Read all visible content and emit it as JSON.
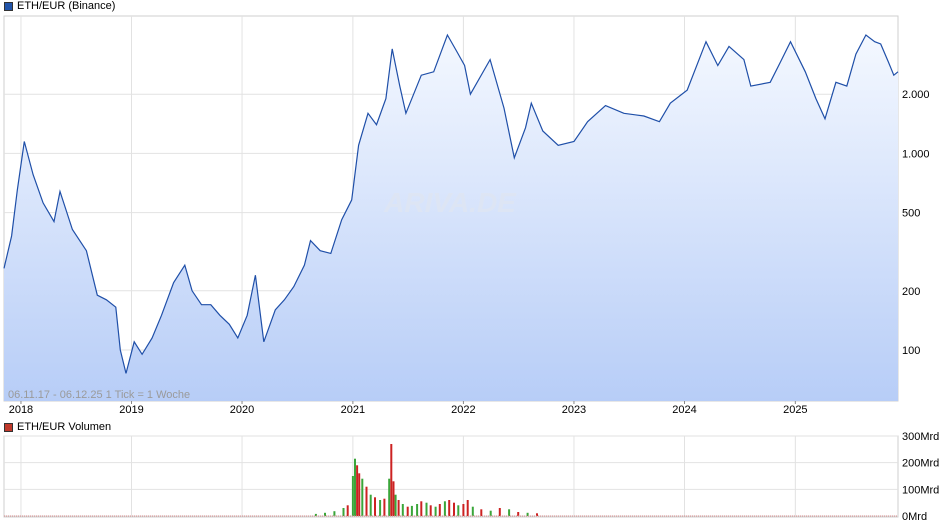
{
  "main_chart": {
    "legend_label": "ETH/EUR (Binance)",
    "legend_color": "#2255aa",
    "line_color": "#1f4fa8",
    "fill_top_color": "#f4f8ff",
    "fill_bottom_color": "#b7cdf7",
    "footnote": "06.11.17 - 06.12.25    1 Tick = 1 Woche",
    "watermark": "ARIVA.DE"
  },
  "volume_chart": {
    "legend_label": "ETH/EUR Volumen",
    "legend_color": "#c0392b",
    "up_color": "#3aa63a",
    "down_color": "#cc2222"
  },
  "chart_data": [
    {
      "type": "line",
      "title": "ETH/EUR (Binance)",
      "y_scale": "log",
      "ylim": [
        55,
        5000
      ],
      "y_ticks": [
        {
          "value": 100,
          "label": "100"
        },
        {
          "value": 200,
          "label": "200"
        },
        {
          "value": 500,
          "label": "500"
        },
        {
          "value": 1000,
          "label": "1.000"
        },
        {
          "value": 2000,
          "label": "2.000"
        }
      ],
      "x_range": [
        "2017-11-06",
        "2025-12-06"
      ],
      "x_ticks": [
        "2018",
        "2019",
        "2020",
        "2021",
        "2022",
        "2023",
        "2024",
        "2025"
      ],
      "grid": true,
      "series": [
        {
          "x": [
            "2017-11-06",
            "2017-12-01",
            "2017-12-20",
            "2018-01-12",
            "2018-02-10",
            "2018-03-15",
            "2018-04-20",
            "2018-05-10",
            "2018-06-20",
            "2018-08-05",
            "2018-09-10",
            "2018-10-10",
            "2018-11-10",
            "2018-11-25",
            "2018-12-14",
            "2019-01-10",
            "2019-02-05",
            "2019-03-10",
            "2019-04-10",
            "2019-05-20",
            "2019-06-26",
            "2019-07-20",
            "2019-08-20",
            "2019-09-20",
            "2019-10-20",
            "2019-11-20",
            "2019-12-18",
            "2020-01-18",
            "2020-02-14",
            "2020-03-13",
            "2020-04-20",
            "2020-05-20",
            "2020-06-20",
            "2020-07-25",
            "2020-08-14",
            "2020-09-15",
            "2020-10-20",
            "2020-11-25",
            "2020-12-28",
            "2021-01-20",
            "2021-02-20",
            "2021-03-20",
            "2021-04-20",
            "2021-05-11",
            "2021-06-05",
            "2021-06-25",
            "2021-08-15",
            "2021-09-25",
            "2021-11-09",
            "2021-12-10",
            "2022-01-05",
            "2022-01-24",
            "2022-03-30",
            "2022-05-15",
            "2022-06-18",
            "2022-07-25",
            "2022-08-13",
            "2022-09-20",
            "2022-11-10",
            "2023-01-01",
            "2023-02-15",
            "2023-04-15",
            "2023-06-15",
            "2023-08-20",
            "2023-10-10",
            "2023-11-15",
            "2024-01-10",
            "2024-03-12",
            "2024-04-20",
            "2024-05-27",
            "2024-07-15",
            "2024-08-07",
            "2024-10-10",
            "2024-11-12",
            "2024-12-16",
            "2025-02-03",
            "2025-03-10",
            "2025-04-09",
            "2025-05-15",
            "2025-06-20",
            "2025-07-20",
            "2025-08-22",
            "2025-09-20",
            "2025-10-10",
            "2025-11-05",
            "2025-11-22",
            "2025-12-06"
          ],
          "y": [
            260,
            380,
            650,
            1150,
            780,
            560,
            450,
            640,
            410,
            320,
            190,
            180,
            165,
            100,
            76,
            110,
            95,
            115,
            150,
            220,
            270,
            200,
            170,
            170,
            150,
            135,
            115,
            150,
            240,
            110,
            160,
            180,
            210,
            270,
            360,
            320,
            310,
            460,
            580,
            1100,
            1600,
            1400,
            1900,
            3400,
            2200,
            1600,
            2500,
            2600,
            4000,
            3300,
            2800,
            2000,
            3000,
            1700,
            950,
            1350,
            1800,
            1300,
            1100,
            1150,
            1450,
            1750,
            1600,
            1550,
            1450,
            1800,
            2100,
            3700,
            2800,
            3500,
            3000,
            2200,
            2300,
            2900,
            3700,
            2600,
            1900,
            1500,
            2300,
            2200,
            3200,
            4000,
            3700,
            3600,
            2900,
            2500,
            2600
          ]
        }
      ]
    },
    {
      "type": "bar",
      "title": "ETH/EUR Volumen",
      "ylim": [
        0,
        300
      ],
      "y_unit": "Mrd",
      "y_ticks": [
        {
          "value": 0,
          "label": "0Mrd"
        },
        {
          "value": 100,
          "label": "100Mrd"
        },
        {
          "value": 200,
          "label": "200Mrd"
        },
        {
          "value": 300,
          "label": "300Mrd"
        }
      ],
      "x_range": [
        "2017-11-06",
        "2025-12-06"
      ],
      "x_ticks": [
        "2018",
        "2019",
        "2020",
        "2021",
        "2022",
        "2023",
        "2024",
        "2025"
      ],
      "series": [
        {
          "name": "ETH/EUR Volumen",
          "x": [
            "2020-09-01",
            "2020-10-01",
            "2020-11-01",
            "2020-12-01",
            "2020-12-15",
            "2021-01-01",
            "2021-01-08",
            "2021-01-15",
            "2021-01-22",
            "2021-02-01",
            "2021-02-15",
            "2021-03-01",
            "2021-03-15",
            "2021-04-01",
            "2021-04-15",
            "2021-05-01",
            "2021-05-08",
            "2021-05-15",
            "2021-05-22",
            "2021-06-01",
            "2021-06-15",
            "2021-07-01",
            "2021-07-15",
            "2021-08-01",
            "2021-08-15",
            "2021-09-01",
            "2021-09-15",
            "2021-10-01",
            "2021-10-15",
            "2021-11-01",
            "2021-11-15",
            "2021-12-01",
            "2021-12-15",
            "2022-01-01",
            "2022-01-15",
            "2022-02-01",
            "2022-03-01",
            "2022-04-01",
            "2022-05-01",
            "2022-06-01",
            "2022-07-01",
            "2022-08-01",
            "2022-09-01"
          ],
          "values": [
            8,
            12,
            18,
            30,
            40,
            150,
            215,
            190,
            160,
            140,
            110,
            80,
            70,
            60,
            65,
            140,
            270,
            130,
            80,
            60,
            45,
            35,
            38,
            45,
            55,
            50,
            40,
            35,
            45,
            55,
            60,
            50,
            40,
            45,
            60,
            35,
            25,
            20,
            30,
            25,
            15,
            12,
            10
          ],
          "up": [
            true,
            true,
            true,
            true,
            false,
            true,
            true,
            false,
            false,
            true,
            false,
            true,
            false,
            true,
            false,
            true,
            false,
            false,
            true,
            false,
            true,
            false,
            true,
            true,
            false,
            true,
            false,
            true,
            false,
            true,
            false,
            false,
            true,
            false,
            false,
            true,
            false,
            true,
            false,
            true,
            false,
            true,
            false
          ]
        }
      ]
    }
  ]
}
